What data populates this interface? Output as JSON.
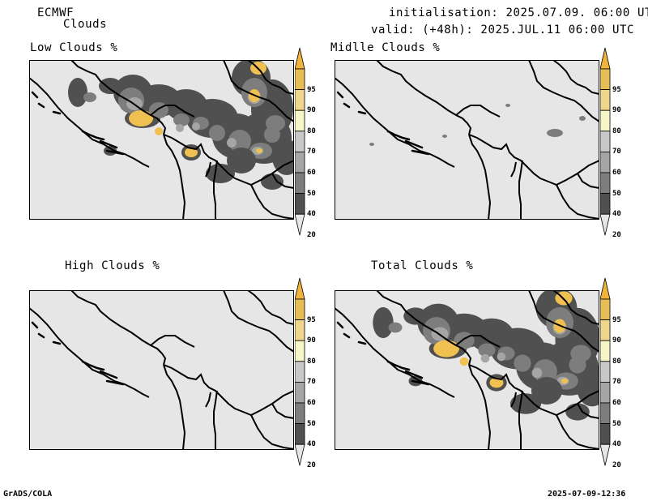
{
  "header": {
    "model": "ECMWF",
    "product": "Clouds",
    "init": "initialisation: 2025.07.09. 06:00 UTC",
    "valid": "valid: (+48h): 2025.JUL.11 06:00 UTC"
  },
  "panels": [
    {
      "id": "low",
      "title": "Low Clouds %"
    },
    {
      "id": "middle",
      "title": "Midlle Clouds %"
    },
    {
      "id": "high",
      "title": "High Clouds %"
    },
    {
      "id": "total",
      "title": "Total Clouds %"
    }
  ],
  "colorbar": {
    "levels": [
      "20",
      "40",
      "50",
      "60",
      "70",
      "80",
      "90",
      "95"
    ],
    "colors": [
      "#e6e6e6",
      "#505050",
      "#7d7d7d",
      "#a5a5a5",
      "#c8c8c8",
      "#f5f5c8",
      "#f0d68c",
      "#e6be55",
      "#f0b43c"
    ]
  },
  "colors": {
    "background": "#e6e6e6",
    "border": "#000000",
    "dark_cloud": "#505050",
    "mid_cloud": "#7d7d7d",
    "light_cloud": "#a5a5a5",
    "yellow": "#f0c050"
  },
  "footer": {
    "left": "GrADS/COLA",
    "right": "2025-07-09-12:36"
  }
}
